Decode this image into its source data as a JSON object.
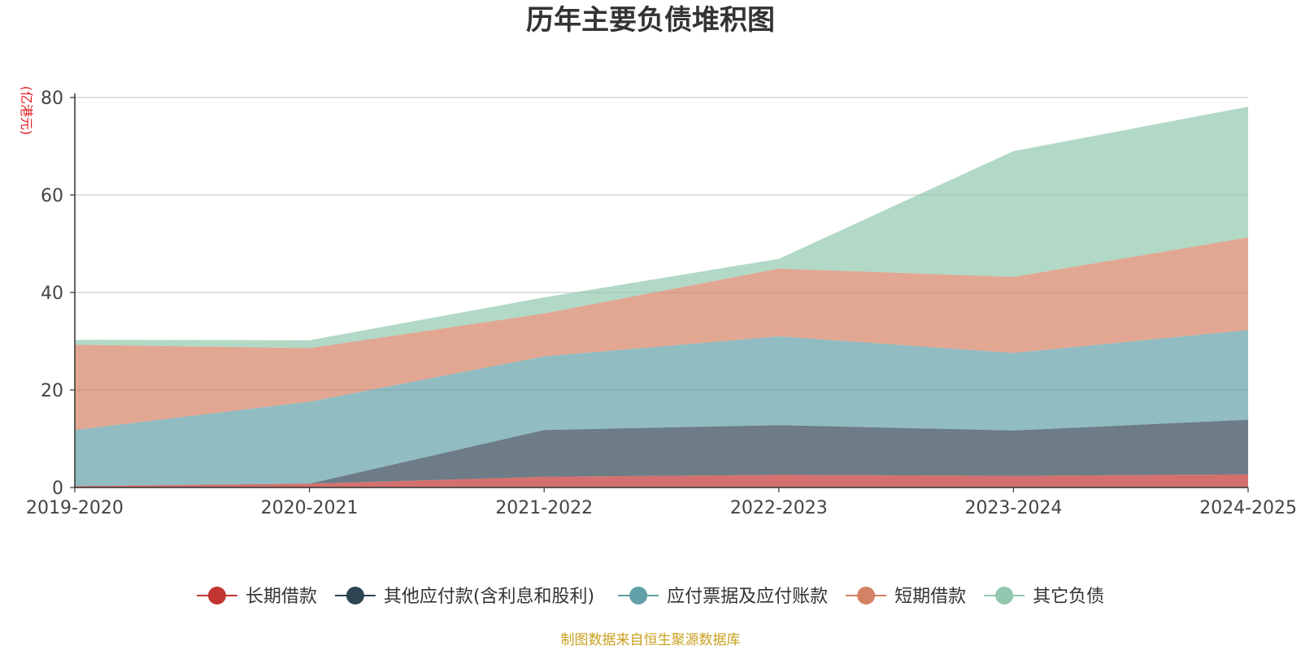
{
  "title": "历年主要负债堆积图",
  "source": "制图数据来自恒生聚源数据库",
  "chart_data": {
    "type": "area",
    "stacked": true,
    "title": "历年主要负债堆积图",
    "unit": "(亿港元)",
    "categories": [
      "2019-2020",
      "2020-2021",
      "2021-2022",
      "2022-2023",
      "2023-2024",
      "2024-2025"
    ],
    "ylim": [
      0,
      80
    ],
    "yticks": [
      0,
      20,
      40,
      60,
      80
    ],
    "grid": true,
    "legend_position": "bottom",
    "series": [
      {
        "name": "长期借款",
        "color": "#c23531",
        "values": [
          0.3,
          0.8,
          2.2,
          2.6,
          2.4,
          2.7
        ]
      },
      {
        "name": "其他应付款(含利息和股利)",
        "color": "#2f4554",
        "values": [
          0.0,
          0.0,
          9.6,
          10.2,
          9.3,
          11.2
        ]
      },
      {
        "name": "应付票据及应付账款",
        "color": "#61a0a8",
        "values": [
          11.5,
          16.8,
          15.1,
          18.2,
          15.9,
          18.4
        ]
      },
      {
        "name": "短期借款",
        "color": "#d48265",
        "values": [
          17.5,
          11.0,
          8.8,
          13.9,
          15.6,
          19.0
        ]
      },
      {
        "name": "其它负债",
        "color": "#91c7ae",
        "values": [
          1.0,
          1.6,
          3.3,
          2.0,
          25.8,
          26.8
        ]
      }
    ]
  }
}
